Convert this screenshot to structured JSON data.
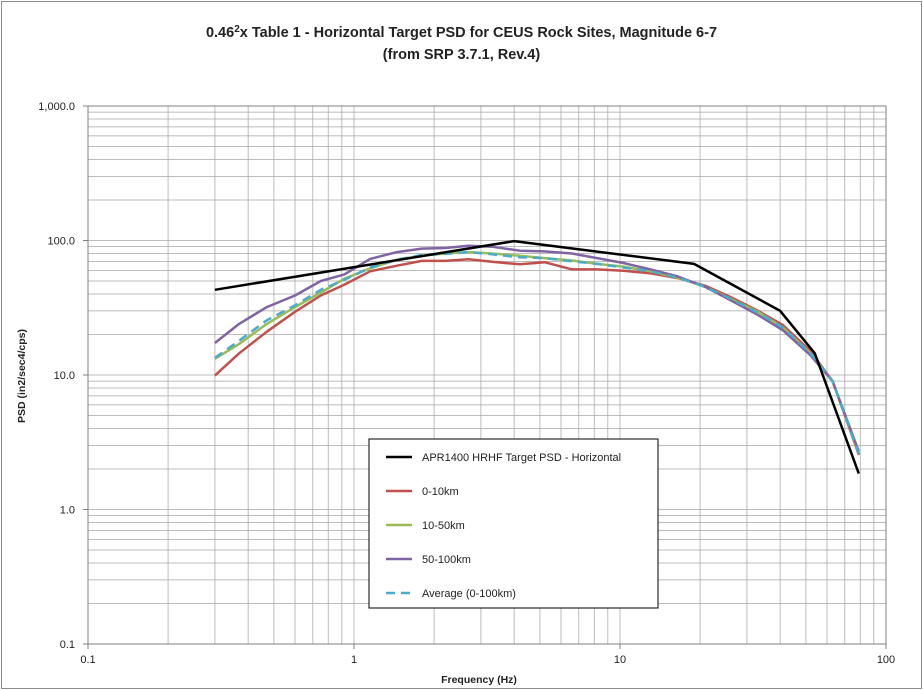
{
  "chart_data": {
    "type": "line",
    "title_prefix": "0.46",
    "title_sup": "2",
    "title_rest": "x Table 1 - Horizontal Target PSD for CEUS Rock Sites, Magnitude 6-7",
    "subtitle": "(from SRP 3.7.1, Rev.4)",
    "xlabel": "Frequency (Hz)",
    "ylabel": "PSD (in2/sec4/cps)",
    "xscale": "log",
    "yscale": "log",
    "xlim": [
      0.1,
      100
    ],
    "ylim": [
      0.1,
      1000
    ],
    "x_ticks": [
      "0.1",
      "1",
      "10",
      "100"
    ],
    "y_ticks": [
      "0.1",
      "1.0",
      "10.0",
      "100.0",
      "1,000.0"
    ],
    "grid": true,
    "legend_position": "center-bottom (inside plot)",
    "series": [
      {
        "name": "APR1400 HRHF Target PSD - Horizontal",
        "color": "#000000",
        "style": "solid",
        "x": [
          0.3,
          4.0,
          19.0,
          40.0,
          54.0,
          79.0
        ],
        "y": [
          43,
          99,
          67,
          30,
          14.5,
          1.85
        ]
      },
      {
        "name": "0-10km",
        "color": "#c0504d",
        "style": "solid",
        "x": [
          0.3,
          0.37,
          0.47,
          0.6,
          0.75,
          0.92,
          1.15,
          1.45,
          1.8,
          2.2,
          2.7,
          3.3,
          4.2,
          5.2,
          6.6,
          8.2,
          10.3,
          13,
          16.5,
          21,
          26,
          33,
          41,
          52,
          63,
          79
        ],
        "y": [
          9.9,
          14.5,
          21,
          29.5,
          39,
          47,
          59,
          65,
          70.5,
          70.5,
          72.5,
          69.5,
          66.5,
          69,
          61,
          61,
          59.5,
          57,
          52.5,
          46,
          38,
          30,
          23.5,
          15,
          9,
          2.55
        ]
      },
      {
        "name": "10-50km",
        "color": "#9bbb59",
        "style": "solid",
        "x": [
          0.3,
          0.37,
          0.47,
          0.6,
          0.75,
          0.92,
          1.15,
          1.45,
          1.8,
          2.2,
          2.7,
          3.3,
          4.2,
          5.2,
          6.6,
          8.2,
          10.3,
          13,
          16.5,
          21,
          26,
          33,
          41,
          52,
          63,
          79
        ],
        "y": [
          13.2,
          17,
          24,
          32,
          41,
          52,
          62,
          72,
          77,
          80,
          82,
          80,
          77,
          74,
          71,
          67,
          64,
          59,
          53,
          45,
          37,
          29.5,
          22.5,
          14.5,
          9,
          2.6
        ]
      },
      {
        "name": "50-100km",
        "color": "#8064a2",
        "style": "solid",
        "x": [
          0.3,
          0.37,
          0.47,
          0.6,
          0.75,
          0.92,
          1.15,
          1.45,
          1.8,
          2.2,
          2.7,
          3.3,
          4.2,
          5.2,
          6.6,
          8.2,
          10.3,
          13,
          16.5,
          21,
          26,
          33,
          41,
          52,
          63,
          79
        ],
        "y": [
          17.3,
          24,
          32,
          39,
          50,
          56,
          73,
          82,
          87,
          88,
          91.5,
          90,
          84,
          83,
          80,
          74,
          68,
          61,
          54,
          45,
          36,
          28,
          21.5,
          14,
          9,
          2.7
        ]
      },
      {
        "name": "Average (0-100km)",
        "color": "#4bacc6",
        "style": "dashed",
        "x": [
          0.3,
          0.37,
          0.47,
          0.6,
          0.75,
          0.92,
          1.15,
          1.45,
          1.8,
          2.2,
          2.7,
          3.3,
          4.2,
          5.2,
          6.6,
          8.2,
          10.3,
          13,
          16.5,
          21,
          26,
          33,
          41,
          52,
          63,
          79
        ],
        "y": [
          13.4,
          18,
          25.5,
          33,
          43,
          51,
          63,
          72,
          78,
          79.5,
          82,
          79,
          75,
          74,
          70,
          67,
          63,
          59,
          53,
          45,
          37,
          29,
          22.5,
          14.5,
          9,
          2.6
        ]
      }
    ]
  }
}
